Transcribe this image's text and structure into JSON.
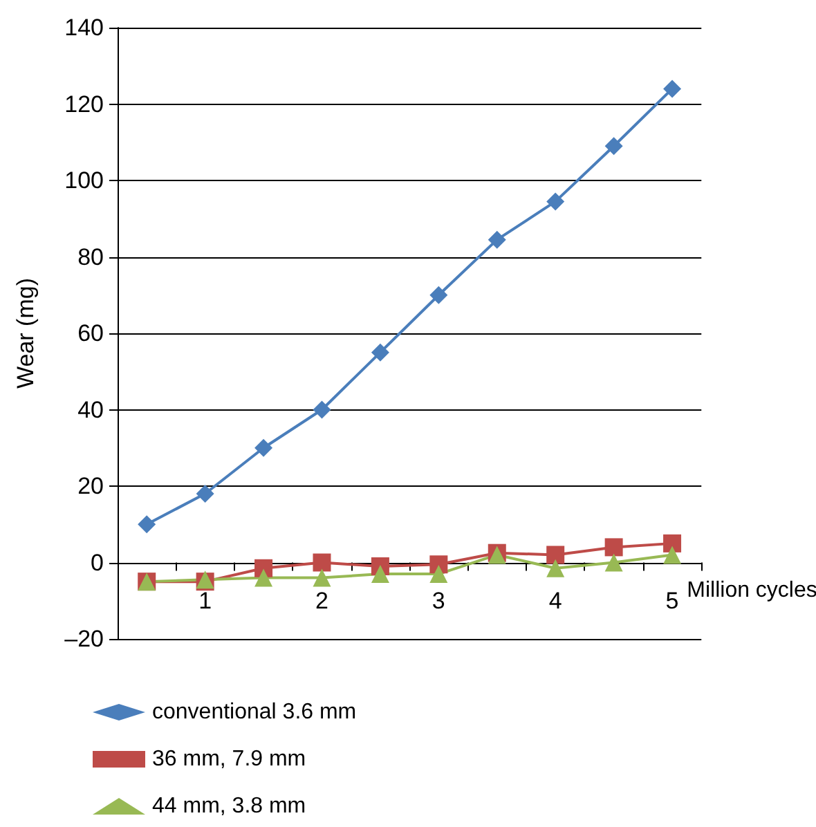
{
  "chart_data": {
    "type": "line",
    "xlabel": "Million cycles",
    "ylabel": "Wear (mg)",
    "x": [
      0.5,
      1,
      1.5,
      2,
      2.5,
      3,
      3.5,
      4,
      4.5,
      5
    ],
    "xlim": [
      0.25,
      5.25
    ],
    "xticks": [
      {
        "value": 1,
        "label": "1"
      },
      {
        "value": 2,
        "label": "2"
      },
      {
        "value": 3,
        "label": "3"
      },
      {
        "value": 4,
        "label": "4"
      },
      {
        "value": 5,
        "label": "5"
      },
      {
        "value": 0.75,
        "label": null
      },
      {
        "value": 1.25,
        "label": null
      },
      {
        "value": 1.75,
        "label": null
      },
      {
        "value": 2.25,
        "label": null
      },
      {
        "value": 2.75,
        "label": null
      },
      {
        "value": 3.25,
        "label": null
      },
      {
        "value": 3.75,
        "label": null
      },
      {
        "value": 4.25,
        "label": null
      },
      {
        "value": 4.75,
        "label": null
      },
      {
        "value": 5.25,
        "label": null
      }
    ],
    "ylim": [
      -20,
      140
    ],
    "yticks": [
      {
        "value": -20,
        "label": "–20"
      },
      0,
      20,
      40,
      60,
      80,
      100,
      120,
      140
    ],
    "grid": "y",
    "legend": "bottom",
    "line_style": "solid",
    "series": [
      {
        "name": "conventional 3.6 mm",
        "color": "#4a7ebb",
        "marker": "diamond",
        "values": [
          10,
          18,
          30,
          40,
          55,
          70,
          84.5,
          94.5,
          109,
          124
        ]
      },
      {
        "name": "36 mm, 7.9 mm",
        "color": "#be4b48",
        "marker": "square",
        "values": [
          -5,
          -5,
          -1.5,
          0,
          -1,
          -0.5,
          2.5,
          2,
          4,
          5
        ]
      },
      {
        "name": "44 mm, 3.8 mm",
        "color": "#98b954",
        "marker": "triangle",
        "values": [
          -5,
          -4.5,
          -4,
          -4,
          -3,
          -3,
          2,
          -1.5,
          0,
          2
        ]
      }
    ]
  }
}
